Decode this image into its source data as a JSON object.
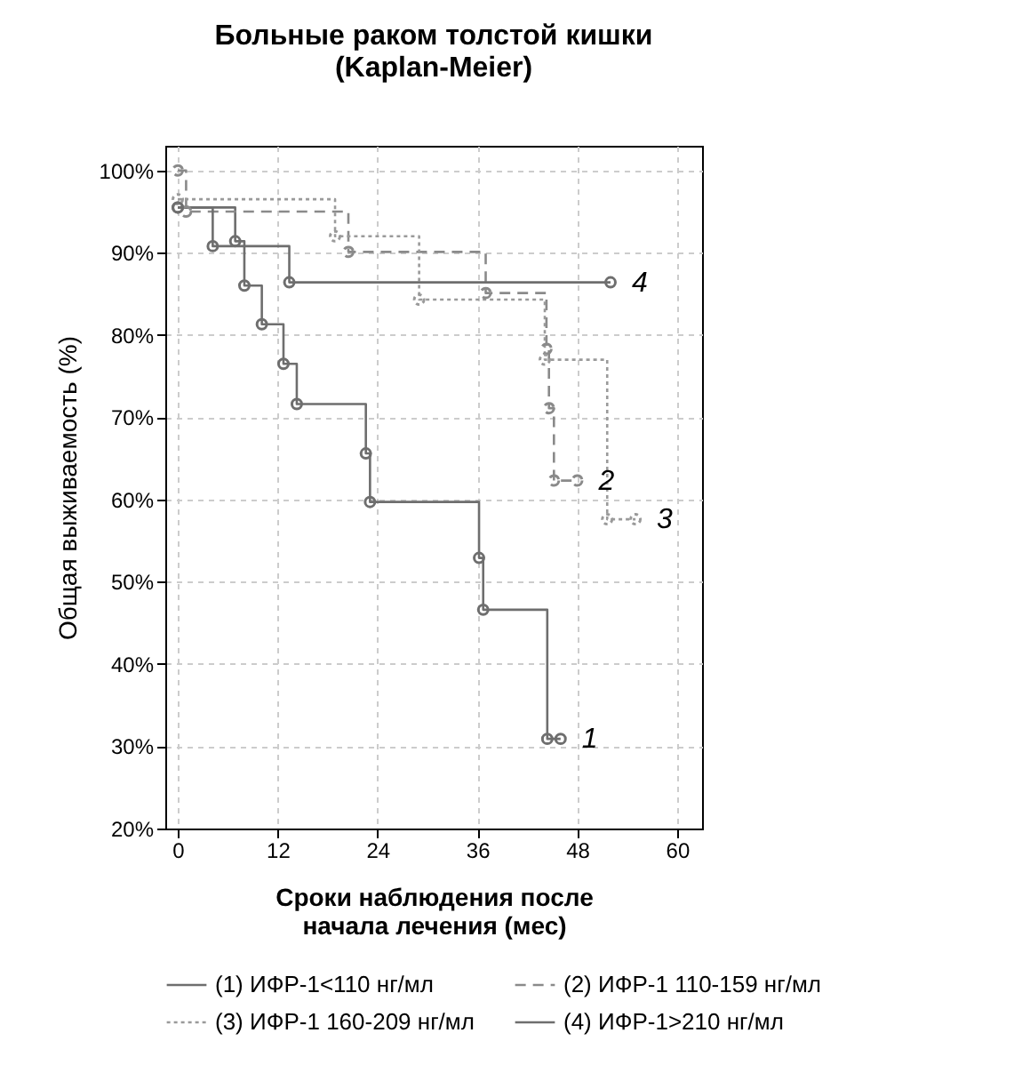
{
  "chart_data": {
    "type": "step",
    "title": "Больные раком толстой кишки\n(Kaplan-Meier)",
    "xlabel": "Сроки наблюдения после начала лечения (мес)",
    "ylabel": "Общая выживаемость (%)",
    "xlim": [
      -1.5,
      63
    ],
    "xticks": [
      0,
      12,
      24,
      36,
      48,
      60
    ],
    "ylim": [
      20,
      103
    ],
    "yticks": [
      {
        "value": 20,
        "label": "20%"
      },
      {
        "value": 30,
        "label": "30%"
      },
      {
        "value": 40,
        "label": "40%"
      },
      {
        "value": 50,
        "label": "50%"
      },
      {
        "value": 60,
        "label": "60%"
      },
      {
        "value": 70,
        "label": "70%"
      },
      {
        "value": 80,
        "label": "80%"
      },
      {
        "value": 90,
        "label": "90%"
      },
      {
        "value": 100,
        "label": "100%"
      }
    ],
    "grid": true,
    "legend": "bottom",
    "marker": "circle",
    "series": [
      {
        "name": "(1) ИФР-1<110 нг/мл",
        "color": "#6e6e6e",
        "line_style": "solid",
        "x": [
          0,
          6.9,
          8,
          10.1,
          12.7,
          14.3,
          22.6,
          23.1,
          36.2,
          36.7,
          44.4,
          46
        ],
        "values": [
          95.5,
          91.4,
          86,
          81.3,
          76.5,
          71.6,
          65.6,
          59.7,
          52.9,
          46.6,
          30.9,
          30.9
        ]
      },
      {
        "name": "(2) ИФР-1 110-159 нг/мл",
        "color": "#8a8a8a",
        "line_style": "dashed",
        "x": [
          0,
          1,
          20.5,
          37,
          44.3,
          44.6,
          45.2,
          48
        ],
        "values": [
          100,
          95,
          90.1,
          85.1,
          78.3,
          71.1,
          62.3,
          62.3
        ]
      },
      {
        "name": "(3) ИФР-1 160-209 нг/мл",
        "color": "#9a9a9a",
        "line_style": "dotted",
        "x": [
          0,
          18.9,
          29,
          44.1,
          51.6,
          55
        ],
        "values": [
          96.5,
          92,
          84.3,
          77,
          57.6,
          57.6
        ]
      },
      {
        "name": "(4) ИФР-1>210 нг/мл",
        "color": "#6e6e6e",
        "line_style": "solid",
        "x": [
          0,
          4.2,
          13.4,
          52
        ],
        "values": [
          95.5,
          90.8,
          86.4,
          86.4
        ]
      }
    ],
    "annotations": [
      "1",
      "2",
      "3",
      "4"
    ]
  }
}
